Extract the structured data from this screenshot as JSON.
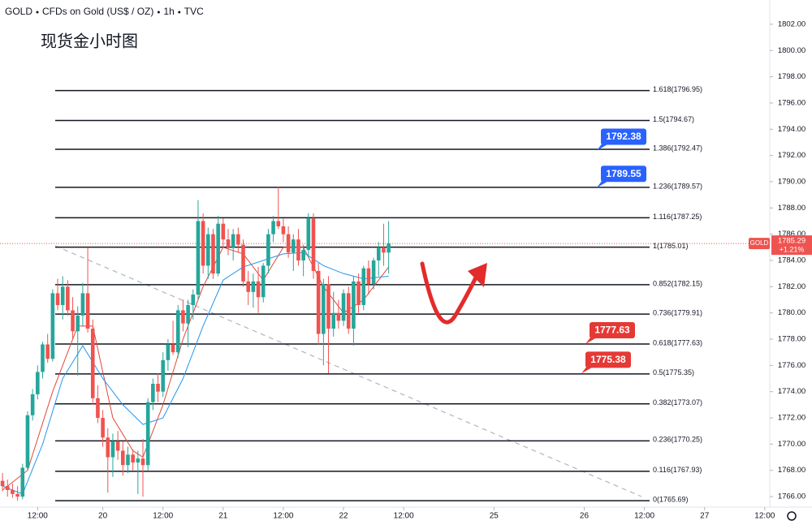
{
  "chart_data": {
    "type": "candlestick",
    "header": [
      "GOLD",
      "CFDs on Gold (US$ / OZ)",
      "1h",
      "TVC"
    ],
    "title": "现货金小时图",
    "up_color": "#26a69a",
    "down_color": "#ef5350",
    "xlim": [
      -0.5,
      153
    ],
    "xticks": [
      {
        "value": 7,
        "label": "12:00"
      },
      {
        "value": 20,
        "label": "20"
      },
      {
        "value": 32,
        "label": "12:00"
      },
      {
        "value": 44,
        "label": "21"
      },
      {
        "value": 56,
        "label": "12:00"
      },
      {
        "value": 68,
        "label": "22"
      },
      {
        "value": 80,
        "label": "12:00"
      },
      {
        "value": 98,
        "label": "25"
      },
      {
        "value": 116,
        "label": "26"
      },
      {
        "value": 128,
        "label": "12:00"
      },
      {
        "value": 140,
        "label": "27"
      },
      {
        "value": 152,
        "label": "12:00"
      }
    ],
    "ylim": [
      1765.2,
      1803.85
    ],
    "yticks": [
      {
        "value": 1766,
        "label": "1766.00"
      },
      {
        "value": 1768,
        "label": "1768.00"
      },
      {
        "value": 1770,
        "label": "1770.00"
      },
      {
        "value": 1772,
        "label": "1772.00"
      },
      {
        "value": 1774,
        "label": "1774.00"
      },
      {
        "value": 1776,
        "label": "1776.00"
      },
      {
        "value": 1778,
        "label": "1778.00"
      },
      {
        "value": 1780,
        "label": "1780.00"
      },
      {
        "value": 1782,
        "label": "1782.00"
      },
      {
        "value": 1784,
        "label": "1784.00"
      },
      {
        "value": 1786,
        "label": "1786.00"
      },
      {
        "value": 1788,
        "label": "1788.00"
      },
      {
        "value": 1790,
        "label": "1790.00"
      },
      {
        "value": 1792,
        "label": "1792.00"
      },
      {
        "value": 1794,
        "label": "1794.00"
      },
      {
        "value": 1796,
        "label": "1796.00"
      },
      {
        "value": 1798,
        "label": "1798.00"
      },
      {
        "value": 1800,
        "label": "1800.00"
      },
      {
        "value": 1802,
        "label": "1802.00"
      }
    ],
    "candles": [
      [
        1767.2,
        1767.8,
        1766.4,
        1766.8
      ],
      [
        1766.8,
        1767.3,
        1766.0,
        1766.5
      ],
      [
        1766.5,
        1767.0,
        1765.9,
        1766.2
      ],
      [
        1766.2,
        1766.8,
        1765.7,
        1766.0
      ],
      [
        1766.0,
        1768.5,
        1765.8,
        1768.2
      ],
      [
        1768.2,
        1772.5,
        1768.0,
        1772.2
      ],
      [
        1772.2,
        1774.2,
        1771.8,
        1773.8
      ],
      [
        1773.8,
        1776.0,
        1773.4,
        1775.5
      ],
      [
        1775.5,
        1777.8,
        1775.0,
        1777.6
      ],
      [
        1777.6,
        1778.4,
        1776.2,
        1776.5
      ],
      [
        1776.5,
        1781.8,
        1776.3,
        1781.5
      ],
      [
        1781.5,
        1782.6,
        1780.2,
        1780.6
      ],
      [
        1780.6,
        1782.8,
        1779.5,
        1782.0
      ],
      [
        1782.0,
        1782.5,
        1779.8,
        1780.2
      ],
      [
        1780.2,
        1781.2,
        1778.0,
        1778.6
      ],
      [
        1778.6,
        1780.5,
        1775.2,
        1779.8
      ],
      [
        1779.8,
        1782.3,
        1779.0,
        1781.5
      ],
      [
        1781.5,
        1785.0,
        1778.5,
        1778.8
      ],
      [
        1778.8,
        1779.5,
        1773.0,
        1773.5
      ],
      [
        1773.5,
        1774.5,
        1771.6,
        1772.0
      ],
      [
        1772.0,
        1772.6,
        1769.8,
        1770.5
      ],
      [
        1770.5,
        1771.2,
        1766.3,
        1769.0
      ],
      [
        1769.0,
        1770.8,
        1767.5,
        1770.2
      ],
      [
        1770.2,
        1771.0,
        1768.8,
        1769.5
      ],
      [
        1769.5,
        1770.2,
        1767.6,
        1768.4
      ],
      [
        1768.4,
        1769.8,
        1767.8,
        1769.2
      ],
      [
        1769.2,
        1769.6,
        1768.0,
        1768.6
      ],
      [
        1768.6,
        1769.5,
        1766.2,
        1768.9
      ],
      [
        1768.9,
        1770.4,
        1766.0,
        1768.4
      ],
      [
        1768.4,
        1773.5,
        1768.0,
        1773.2
      ],
      [
        1773.2,
        1775.0,
        1772.6,
        1774.6
      ],
      [
        1774.6,
        1775.4,
        1773.2,
        1774.0
      ],
      [
        1774.0,
        1777.0,
        1773.6,
        1776.4
      ],
      [
        1776.4,
        1778.0,
        1775.6,
        1777.6
      ],
      [
        1777.6,
        1779.4,
        1776.8,
        1777.0
      ],
      [
        1777.0,
        1780.6,
        1776.6,
        1780.2
      ],
      [
        1780.2,
        1781.0,
        1778.6,
        1779.2
      ],
      [
        1779.2,
        1781.0,
        1777.4,
        1780.6
      ],
      [
        1780.6,
        1781.8,
        1779.5,
        1781.4
      ],
      [
        1781.4,
        1788.6,
        1781.0,
        1787.0
      ],
      [
        1787.0,
        1787.6,
        1783.0,
        1783.6
      ],
      [
        1783.6,
        1786.5,
        1782.6,
        1786.0
      ],
      [
        1786.0,
        1786.4,
        1782.6,
        1783.0
      ],
      [
        1783.0,
        1787.4,
        1782.8,
        1786.8
      ],
      [
        1786.8,
        1787.2,
        1785.0,
        1785.6
      ],
      [
        1785.6,
        1786.4,
        1784.4,
        1785.0
      ],
      [
        1785.0,
        1786.4,
        1784.0,
        1786.0
      ],
      [
        1786.0,
        1786.5,
        1784.6,
        1785.2
      ],
      [
        1785.2,
        1785.6,
        1782.0,
        1782.4
      ],
      [
        1782.4,
        1783.2,
        1780.6,
        1781.6
      ],
      [
        1781.6,
        1783.0,
        1780.4,
        1782.4
      ],
      [
        1782.4,
        1783.5,
        1780.0,
        1781.2
      ],
      [
        1781.2,
        1783.8,
        1780.8,
        1783.6
      ],
      [
        1783.6,
        1786.4,
        1783.0,
        1786.0
      ],
      [
        1786.0,
        1787.4,
        1785.4,
        1787.0
      ],
      [
        1787.0,
        1789.6,
        1786.4,
        1786.6
      ],
      [
        1786.6,
        1787.2,
        1785.4,
        1786.0
      ],
      [
        1786.0,
        1786.6,
        1784.2,
        1784.6
      ],
      [
        1784.6,
        1786.0,
        1783.2,
        1785.6
      ],
      [
        1785.6,
        1786.4,
        1783.6,
        1784.0
      ],
      [
        1784.0,
        1785.2,
        1782.8,
        1784.8
      ],
      [
        1784.8,
        1787.6,
        1784.2,
        1787.2
      ],
      [
        1787.2,
        1787.6,
        1782.6,
        1783.2
      ],
      [
        1783.2,
        1783.8,
        1777.6,
        1778.4
      ],
      [
        1778.4,
        1782.6,
        1776.0,
        1782.2
      ],
      [
        1782.2,
        1782.8,
        1775.4,
        1778.8
      ],
      [
        1778.8,
        1781.6,
        1778.2,
        1780.0
      ],
      [
        1780.0,
        1781.0,
        1778.8,
        1779.4
      ],
      [
        1779.4,
        1781.8,
        1779.0,
        1781.5
      ],
      [
        1781.5,
        1782.0,
        1778.4,
        1778.8
      ],
      [
        1778.8,
        1782.8,
        1777.5,
        1782.4
      ],
      [
        1782.4,
        1783.0,
        1780.0,
        1780.6
      ],
      [
        1780.6,
        1783.6,
        1780.2,
        1783.4
      ],
      [
        1783.4,
        1784.0,
        1781.4,
        1782.2
      ],
      [
        1782.2,
        1784.2,
        1781.8,
        1784.0
      ],
      [
        1784.0,
        1785.4,
        1782.8,
        1785.0
      ],
      [
        1785.0,
        1786.8,
        1783.6,
        1784.6
      ],
      [
        1784.6,
        1787.0,
        1783.0,
        1785.29
      ]
    ],
    "moving_averages": [
      {
        "color": "#e0463a",
        "x": [
          0,
          5,
          10,
          15,
          18,
          22,
          26,
          28,
          32,
          36,
          40,
          44,
          48,
          52,
          56,
          60,
          64,
          68,
          72,
          77
        ],
        "values": [
          1766.5,
          1768,
          1774,
          1779,
          1779,
          1772,
          1769.5,
          1769,
          1773,
          1778,
          1782,
          1785,
          1784.5,
          1782.5,
          1785,
          1785,
          1782,
          1780,
          1781,
          1783.5
        ]
      },
      {
        "color": "#2196f3",
        "x": [
          0,
          4,
          8,
          12,
          16,
          20,
          24,
          28,
          32,
          36,
          40,
          44,
          48,
          52,
          56,
          60,
          64,
          68,
          72,
          77
        ],
        "values": [
          1766.8,
          1766.2,
          1770,
          1775,
          1777.5,
          1775,
          1773,
          1771.5,
          1772,
          1775,
          1779,
          1782.5,
          1783.5,
          1784,
          1784.5,
          1784.6,
          1783.6,
          1783,
          1782.6,
          1782.8
        ]
      }
    ],
    "fib_levels": [
      {
        "value": 1796.95,
        "label": "1.618(1796.95)"
      },
      {
        "value": 1794.67,
        "label": "1.5(1794.67)"
      },
      {
        "value": 1792.47,
        "label": "1.386(1792.47)"
      },
      {
        "value": 1789.57,
        "label": "1.236(1789.57)"
      },
      {
        "value": 1787.25,
        "label": "1.116(1787.25)"
      },
      {
        "value": 1785.01,
        "label": "1(1785.01)"
      },
      {
        "value": 1782.15,
        "label": "0.852(1782.15)"
      },
      {
        "value": 1779.91,
        "label": "0.736(1779.91)"
      },
      {
        "value": 1777.63,
        "label": "0.618(1777.63)"
      },
      {
        "value": 1775.35,
        "label": "0.5(1775.35)"
      },
      {
        "value": 1773.07,
        "label": "0.382(1773.07)"
      },
      {
        "value": 1770.25,
        "label": "0.236(1770.25)"
      },
      {
        "value": 1767.93,
        "label": "0.116(1767.93)"
      },
      {
        "value": 1765.69,
        "label": "0(1765.69)"
      }
    ],
    "callouts": [
      {
        "value": 1792.38,
        "color": "#2962ff"
      },
      {
        "value": 1789.55,
        "color": "#2962ff"
      },
      {
        "value": 1777.63,
        "color": "#e53935"
      },
      {
        "value": 1775.38,
        "color": "#e53935"
      }
    ],
    "price_tag": {
      "symbol": "GOLD",
      "price": 1785.29,
      "change": "+1.21%"
    }
  }
}
